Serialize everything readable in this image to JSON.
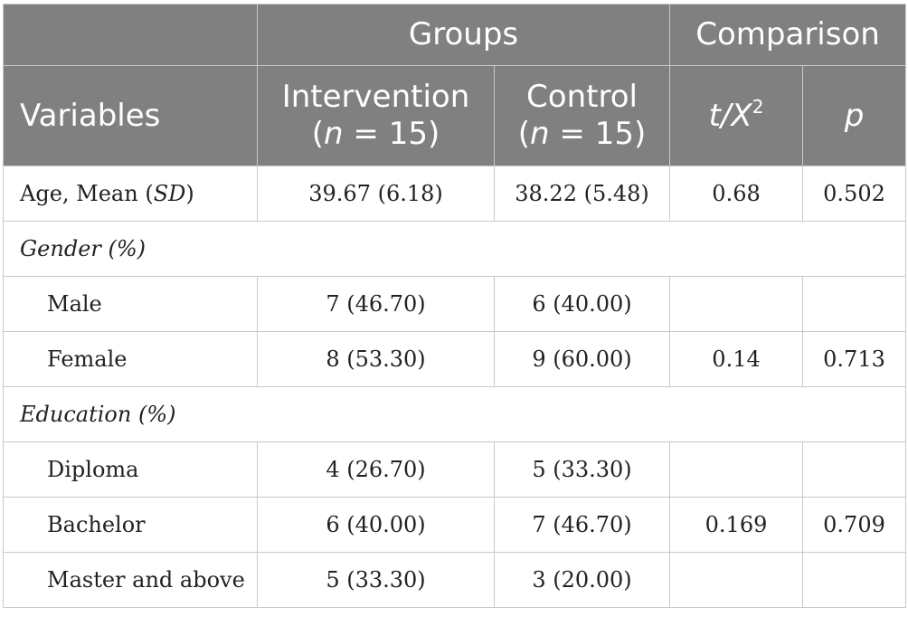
{
  "header": {
    "groups": "Groups",
    "comparison": "Comparison",
    "variables": "Variables",
    "intervention": "Intervention",
    "control": "Control",
    "n_label": "n",
    "n_value": " = 15)",
    "open_paren": "(",
    "stat_t": "t/X",
    "stat_sup": "2",
    "stat_p": "p"
  },
  "rows": {
    "age": {
      "label_prefix": "Age, Mean (",
      "label_it": "SD",
      "label_suffix": ")",
      "intervention": "39.67 (6.18)",
      "control": "38.22 (5.48)",
      "stat": "0.68",
      "p": "0.502"
    },
    "gender_section": "Gender (%)",
    "male": {
      "label": "Male",
      "intervention": "7 (46.70)",
      "control": "6 (40.00)",
      "stat": "",
      "p": ""
    },
    "female": {
      "label": "Female",
      "intervention": "8 (53.30)",
      "control": "9 (60.00)",
      "stat": "0.14",
      "p": "0.713"
    },
    "education_section": "Education (%)",
    "diploma": {
      "label": "Diploma",
      "intervention": "4 (26.70)",
      "control": "5 (33.30)",
      "stat": "",
      "p": ""
    },
    "bachelor": {
      "label": "Bachelor",
      "intervention": "6 (40.00)",
      "control": "7 (46.70)",
      "stat": "0.169",
      "p": "0.709"
    },
    "master": {
      "label": "Master and above",
      "intervention": "5 (33.30)",
      "control": "3 (20.00)",
      "stat": "",
      "p": ""
    }
  }
}
